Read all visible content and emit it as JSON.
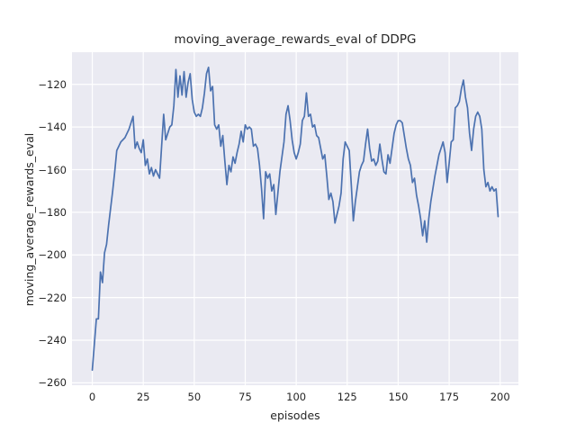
{
  "figure": {
    "background": "#ffffff"
  },
  "chart_data": {
    "type": "line",
    "title": "moving_average_rewards_eval of DDPG",
    "xlabel": "episodes",
    "ylabel": "moving_average_rewards_eval",
    "x_description": "episode index 0-199 (one value per episode)",
    "xlim": [
      -9.95,
      208.95
    ],
    "ylim": [
      -261.1,
      -104.9
    ],
    "grid": true,
    "grid_color": "#ffffff",
    "axes_background": "#eaeaf2",
    "text_color": "#262626",
    "legend_position": "none",
    "x_ticks": [
      {
        "value": 0,
        "label": "0"
      },
      {
        "value": 25,
        "label": "25"
      },
      {
        "value": 50,
        "label": "50"
      },
      {
        "value": 75,
        "label": "75"
      },
      {
        "value": 100,
        "label": "100"
      },
      {
        "value": 125,
        "label": "125"
      },
      {
        "value": 150,
        "label": "150"
      },
      {
        "value": 175,
        "label": "175"
      },
      {
        "value": 200,
        "label": "200"
      }
    ],
    "y_ticks": [
      {
        "value": -120,
        "label": "−120"
      },
      {
        "value": -140,
        "label": "−140"
      },
      {
        "value": -160,
        "label": "−160"
      },
      {
        "value": -180,
        "label": "−180"
      },
      {
        "value": -200,
        "label": "−200"
      },
      {
        "value": -220,
        "label": "−220"
      },
      {
        "value": -240,
        "label": "−240"
      },
      {
        "value": -260,
        "label": "−260"
      }
    ],
    "series": [
      {
        "name": "moving_average_rewards_eval",
        "color": "#4c72b0",
        "line_width": 1.7,
        "values": [
          -254,
          -242,
          -230,
          -230,
          -208,
          -213,
          -199,
          -195,
          -186,
          -178,
          -170,
          -161,
          -151,
          -149,
          -147,
          -146,
          -145,
          -143,
          -141,
          -138,
          -135,
          -150,
          -147,
          -150,
          -152,
          -146,
          -158,
          -155,
          -162,
          -159,
          -163,
          -160,
          -162,
          -164,
          -149,
          -134,
          -146,
          -143,
          -140,
          -139,
          -130,
          -113,
          -126,
          -116,
          -125,
          -114,
          -126,
          -119,
          -115,
          -127,
          -133,
          -135,
          -134,
          -135,
          -131,
          -124,
          -115,
          -112,
          -123,
          -121,
          -139,
          -141,
          -139,
          -149,
          -144,
          -156,
          -167,
          -158,
          -161,
          -154,
          -157,
          -152,
          -148,
          -142,
          -147,
          -139,
          -141,
          -140,
          -141,
          -149,
          -148,
          -150,
          -158,
          -169,
          -183,
          -161,
          -164,
          -162,
          -170,
          -167,
          -181,
          -171,
          -161,
          -154,
          -147,
          -134,
          -130,
          -137,
          -146,
          -152,
          -155,
          -152,
          -148,
          -137,
          -135,
          -124,
          -135,
          -134,
          -140,
          -139,
          -144,
          -145,
          -150,
          -155,
          -153,
          -163,
          -174,
          -171,
          -175,
          -185,
          -181,
          -177,
          -171,
          -155,
          -147,
          -149,
          -151,
          -167,
          -184,
          -175,
          -168,
          -161,
          -158,
          -156,
          -148,
          -141,
          -150,
          -156,
          -155,
          -158,
          -156,
          -148,
          -155,
          -161,
          -162,
          -153,
          -157,
          -150,
          -143,
          -139,
          -137,
          -137,
          -138,
          -144,
          -150,
          -155,
          -158,
          -166,
          -164,
          -172,
          -177,
          -183,
          -191,
          -184,
          -194,
          -183,
          -175,
          -169,
          -163,
          -158,
          -153,
          -150,
          -147,
          -152,
          -166,
          -157,
          -147,
          -146,
          -131,
          -130,
          -128,
          -122,
          -118,
          -126,
          -131,
          -143,
          -151,
          -141,
          -135,
          -133,
          -135,
          -141,
          -160,
          -168,
          -166,
          -170,
          -168,
          -170,
          -169,
          -182
        ]
      }
    ]
  }
}
